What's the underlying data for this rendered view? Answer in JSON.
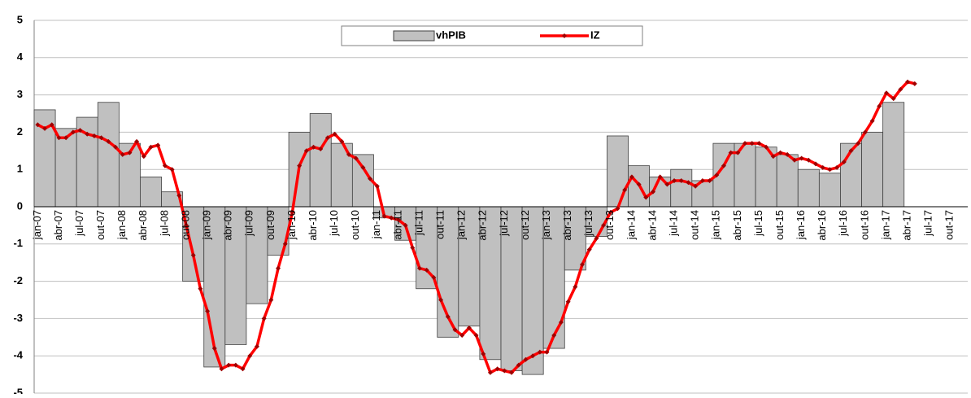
{
  "chart_data": {
    "type": "combo",
    "categories": [
      "jan-07",
      null,
      null,
      "abr-07",
      null,
      null,
      "jul-07",
      null,
      null,
      "out-07",
      null,
      null,
      "jan-08",
      null,
      null,
      "abr-08",
      null,
      null,
      "jul-08",
      null,
      null,
      "out-08",
      null,
      null,
      "jan-09",
      null,
      null,
      "abr-09",
      null,
      null,
      "jul-09",
      null,
      null,
      "out-09",
      null,
      null,
      "jan-10",
      null,
      null,
      "abr-10",
      null,
      null,
      "jul-10",
      null,
      null,
      "out-10",
      null,
      null,
      "jan-11",
      null,
      null,
      "abr-11",
      null,
      null,
      "jul-11",
      null,
      null,
      "out-11",
      null,
      null,
      "jan-12",
      null,
      null,
      "abr-12",
      null,
      null,
      "jul-12",
      null,
      null,
      "out-12",
      null,
      null,
      "jan-13",
      null,
      null,
      "abr-13",
      null,
      null,
      "jul-13",
      null,
      null,
      "out-13",
      null,
      null,
      "jan-14",
      null,
      null,
      "abr-14",
      null,
      null,
      "jul-14",
      null,
      null,
      "out-14",
      null,
      null,
      "jan-15",
      null,
      null,
      "abr-15",
      null,
      null,
      "jul-15",
      null,
      null,
      "out-15",
      null,
      null,
      "jan-16",
      null,
      null,
      "abr-16",
      null,
      null,
      "jul-16",
      null,
      null,
      "out-16",
      null,
      null,
      "jan-17",
      null,
      null,
      "abr-17",
      null,
      null,
      "jul-17",
      null,
      null,
      "out-17",
      null,
      null
    ],
    "series": [
      {
        "name": "vhPIB",
        "type": "bar",
        "color": "#c0c0c0",
        "values": [
          null,
          2.6,
          null,
          null,
          2.1,
          null,
          null,
          2.4,
          null,
          null,
          2.8,
          null,
          null,
          1.7,
          null,
          null,
          0.8,
          null,
          null,
          0.4,
          null,
          null,
          -2.0,
          null,
          null,
          -4.3,
          null,
          null,
          -3.7,
          null,
          null,
          -2.6,
          null,
          null,
          -1.3,
          null,
          null,
          2.0,
          null,
          null,
          2.5,
          null,
          null,
          1.7,
          null,
          null,
          1.4,
          null,
          null,
          -0.3,
          null,
          null,
          -0.9,
          null,
          null,
          -2.2,
          null,
          null,
          -3.5,
          null,
          null,
          -3.2,
          null,
          null,
          -4.1,
          null,
          null,
          -4.4,
          null,
          null,
          -4.5,
          null,
          null,
          -3.8,
          null,
          null,
          -1.7,
          null,
          null,
          -0.8,
          null,
          null,
          1.9,
          null,
          null,
          1.1,
          null,
          null,
          0.8,
          null,
          null,
          1.0,
          null,
          null,
          0.7,
          null,
          null,
          1.7,
          null,
          null,
          1.7,
          null,
          null,
          1.6,
          null,
          null,
          1.4,
          null,
          null,
          1.0,
          null,
          null,
          0.9,
          null,
          null,
          1.7,
          null,
          null,
          2.0,
          null,
          null,
          2.8,
          null,
          null,
          null,
          null,
          null,
          null,
          null,
          null,
          null,
          null
        ]
      },
      {
        "name": "IZ",
        "type": "line",
        "color": "#ff0000",
        "values": [
          2.2,
          2.1,
          2.2,
          1.85,
          1.85,
          2.0,
          2.05,
          1.95,
          1.9,
          1.85,
          1.75,
          1.6,
          1.4,
          1.45,
          1.75,
          1.35,
          1.6,
          1.65,
          1.1,
          1.0,
          0.3,
          -0.5,
          -1.3,
          -2.2,
          -2.8,
          -3.8,
          -4.35,
          -4.25,
          -4.25,
          -4.35,
          -4.0,
          -3.75,
          -3.0,
          -2.5,
          -1.65,
          -1.0,
          -0.15,
          1.1,
          1.5,
          1.6,
          1.55,
          1.85,
          1.95,
          1.75,
          1.4,
          1.3,
          1.05,
          0.75,
          0.55,
          -0.25,
          -0.3,
          -0.35,
          -0.5,
          -1.1,
          -1.65,
          -1.7,
          -1.9,
          -2.5,
          -2.95,
          -3.3,
          -3.45,
          -3.25,
          -3.45,
          -3.95,
          -4.45,
          -4.35,
          -4.4,
          -4.45,
          -4.25,
          -4.1,
          -4.0,
          -3.9,
          -3.9,
          -3.45,
          -3.1,
          -2.55,
          -2.15,
          -1.55,
          -1.15,
          -0.85,
          -0.5,
          -0.15,
          -0.05,
          0.45,
          0.8,
          0.6,
          0.25,
          0.4,
          0.8,
          0.6,
          0.7,
          0.7,
          0.65,
          0.55,
          0.7,
          0.7,
          0.85,
          1.1,
          1.45,
          1.45,
          1.7,
          1.7,
          1.7,
          1.6,
          1.35,
          1.45,
          1.4,
          1.25,
          1.3,
          1.25,
          1.15,
          1.05,
          1.0,
          1.05,
          1.2,
          1.5,
          1.7,
          2.0,
          2.3,
          2.7,
          3.05,
          2.9,
          3.15,
          3.35,
          3.3,
          null,
          null,
          null,
          null,
          null,
          null,
          null
        ]
      }
    ],
    "ylim": [
      -5,
      5
    ],
    "yticks": [
      -5,
      -4,
      -3,
      -2,
      -1,
      0,
      1,
      2,
      3,
      4,
      5
    ],
    "grid": true
  }
}
